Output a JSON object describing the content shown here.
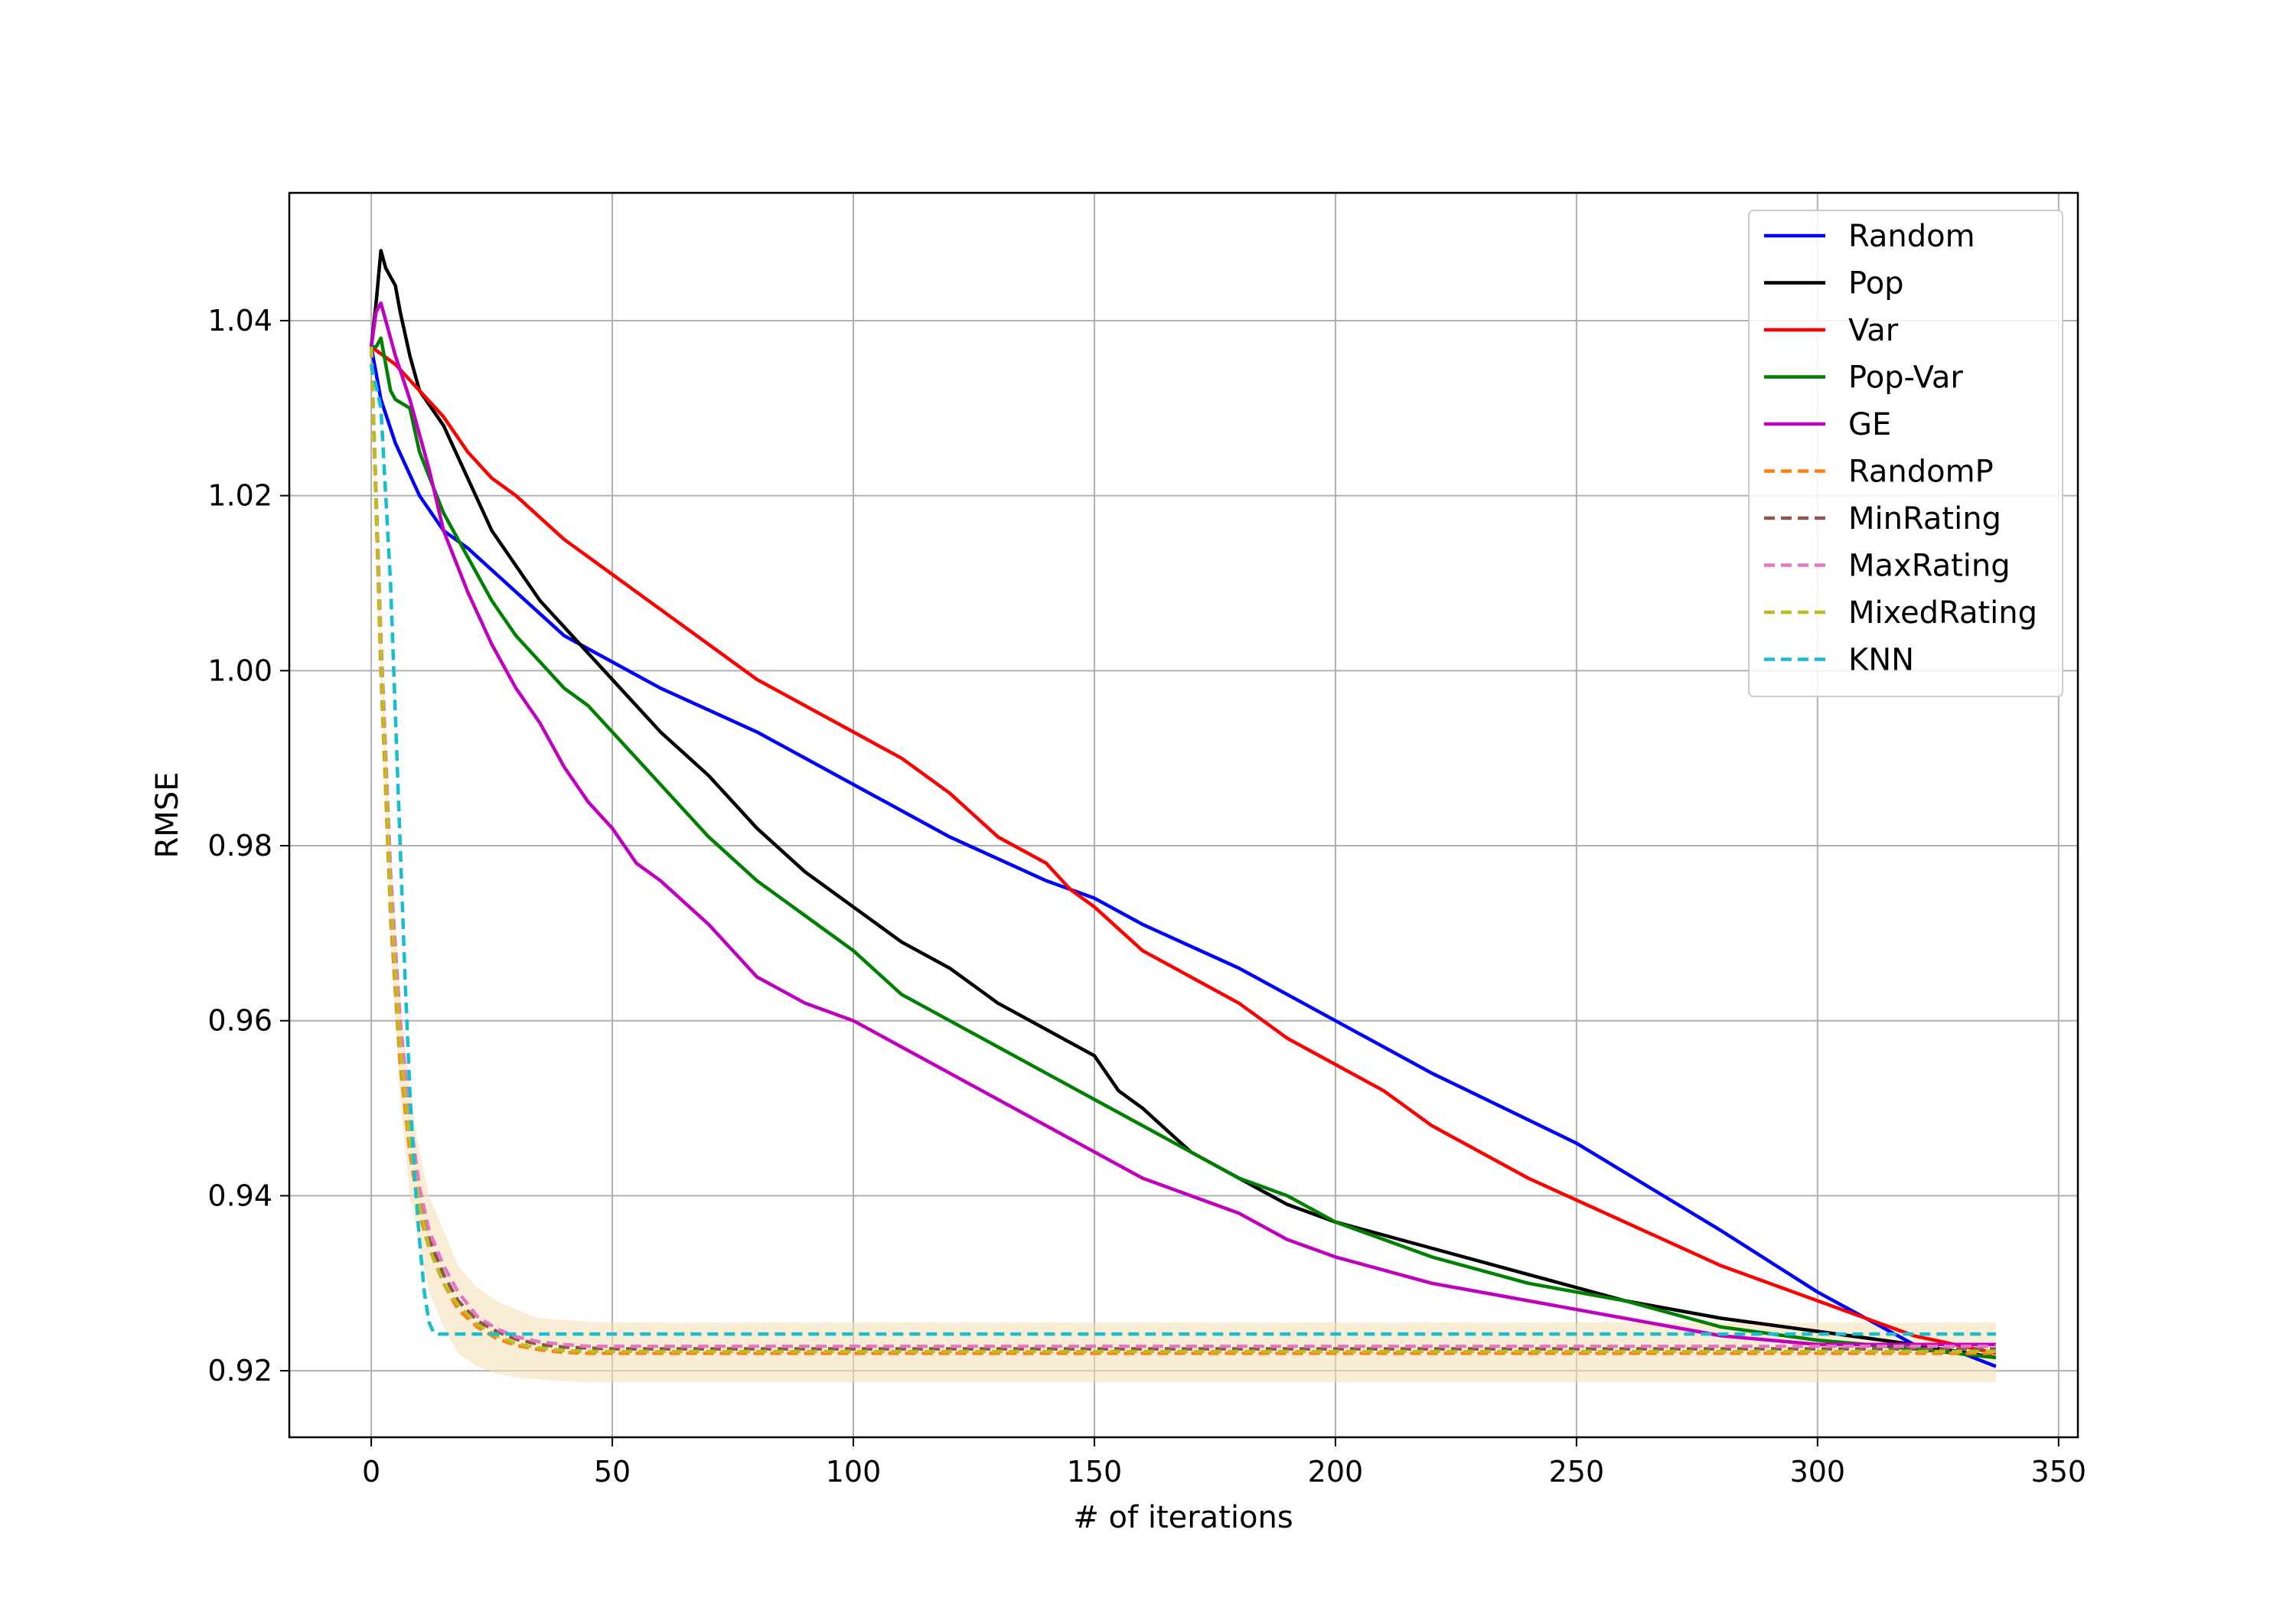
{
  "chart_data": {
    "type": "line",
    "title": "",
    "xlabel": "# of iterations",
    "ylabel": "RMSE",
    "xlim": [
      -17,
      354
    ],
    "ylim": [
      0.9124,
      1.0546
    ],
    "xticks": [
      0,
      50,
      100,
      150,
      200,
      250,
      300,
      350
    ],
    "xtick_labels": [
      "0",
      "50",
      "100",
      "150",
      "200",
      "250",
      "300",
      "350"
    ],
    "yticks": [
      0.92,
      0.94,
      0.96,
      0.98,
      1.0,
      1.02,
      1.04
    ],
    "ytick_labels": [
      "0.92",
      "0.94",
      "0.96",
      "0.98",
      "1.00",
      "1.02",
      "1.04"
    ],
    "grid": true,
    "legend_position": "top-right",
    "series": [
      {
        "name": "Random",
        "color": "#0000ff",
        "style": "solid",
        "x": [
          0,
          2,
          5,
          10,
          15,
          20,
          30,
          40,
          50,
          60,
          80,
          100,
          120,
          140,
          150,
          160,
          180,
          200,
          220,
          250,
          280,
          300,
          320,
          330,
          337
        ],
        "y": [
          1.037,
          1.031,
          1.026,
          1.02,
          1.016,
          1.014,
          1.009,
          1.004,
          1.001,
          0.998,
          0.993,
          0.987,
          0.981,
          0.976,
          0.974,
          0.971,
          0.966,
          0.96,
          0.954,
          0.946,
          0.936,
          0.929,
          0.923,
          0.922,
          0.9205
        ]
      },
      {
        "name": "Pop",
        "color": "#000000",
        "style": "solid",
        "x": [
          0,
          1,
          2,
          3,
          4,
          5,
          6,
          8,
          10,
          15,
          20,
          25,
          30,
          35,
          40,
          45,
          50,
          60,
          70,
          80,
          90,
          100,
          110,
          120,
          130,
          140,
          150,
          155,
          160,
          170,
          180,
          190,
          200,
          220,
          240,
          260,
          280,
          300,
          320,
          337
        ],
        "y": [
          1.037,
          1.042,
          1.048,
          1.046,
          1.045,
          1.044,
          1.041,
          1.036,
          1.032,
          1.028,
          1.022,
          1.016,
          1.012,
          1.008,
          1.005,
          1.002,
          0.999,
          0.993,
          0.988,
          0.982,
          0.977,
          0.973,
          0.969,
          0.966,
          0.962,
          0.959,
          0.956,
          0.952,
          0.95,
          0.945,
          0.942,
          0.939,
          0.937,
          0.934,
          0.931,
          0.928,
          0.926,
          0.9245,
          0.923,
          0.9215
        ]
      },
      {
        "name": "Var",
        "color": "#ff0000",
        "style": "solid",
        "x": [
          0,
          5,
          10,
          15,
          20,
          25,
          30,
          40,
          50,
          60,
          70,
          80,
          90,
          100,
          110,
          120,
          130,
          140,
          145,
          150,
          160,
          170,
          180,
          190,
          200,
          210,
          220,
          240,
          260,
          280,
          300,
          320,
          337
        ],
        "y": [
          1.037,
          1.035,
          1.032,
          1.029,
          1.025,
          1.022,
          1.02,
          1.015,
          1.011,
          1.007,
          1.003,
          0.999,
          0.996,
          0.993,
          0.99,
          0.986,
          0.981,
          0.978,
          0.975,
          0.973,
          0.968,
          0.965,
          0.962,
          0.958,
          0.955,
          0.952,
          0.948,
          0.942,
          0.937,
          0.932,
          0.928,
          0.924,
          0.922
        ]
      },
      {
        "name": "Pop-Var",
        "color": "#008000",
        "style": "solid",
        "x": [
          0,
          1,
          2,
          3,
          4,
          5,
          8,
          10,
          15,
          20,
          25,
          30,
          35,
          40,
          45,
          50,
          55,
          60,
          70,
          80,
          90,
          100,
          110,
          120,
          130,
          140,
          150,
          160,
          170,
          180,
          190,
          200,
          220,
          240,
          260,
          280,
          300,
          320,
          337
        ],
        "y": [
          1.037,
          1.037,
          1.038,
          1.035,
          1.032,
          1.031,
          1.03,
          1.025,
          1.018,
          1.013,
          1.008,
          1.004,
          1.001,
          0.998,
          0.996,
          0.993,
          0.99,
          0.987,
          0.981,
          0.976,
          0.972,
          0.968,
          0.963,
          0.96,
          0.957,
          0.954,
          0.951,
          0.948,
          0.945,
          0.942,
          0.94,
          0.937,
          0.933,
          0.93,
          0.928,
          0.925,
          0.9235,
          0.9225,
          0.9215
        ]
      },
      {
        "name": "GE",
        "color": "#bf00bf",
        "style": "solid",
        "x": [
          0,
          1,
          2,
          3,
          5,
          8,
          10,
          12,
          15,
          20,
          25,
          30,
          35,
          40,
          45,
          50,
          55,
          60,
          70,
          80,
          90,
          100,
          110,
          120,
          130,
          140,
          150,
          160,
          170,
          180,
          190,
          200,
          220,
          240,
          260,
          280,
          300,
          320,
          337
        ],
        "y": [
          1.037,
          1.041,
          1.042,
          1.04,
          1.036,
          1.031,
          1.027,
          1.023,
          1.016,
          1.009,
          1.003,
          0.998,
          0.994,
          0.989,
          0.985,
          0.982,
          0.978,
          0.976,
          0.971,
          0.965,
          0.962,
          0.96,
          0.957,
          0.954,
          0.951,
          0.948,
          0.945,
          0.942,
          0.94,
          0.938,
          0.935,
          0.933,
          0.93,
          0.928,
          0.926,
          0.924,
          0.923,
          0.923,
          0.923
        ]
      },
      {
        "name": "RandomP",
        "color": "#ff7f0e",
        "style": "dashed",
        "x": [
          0,
          2,
          4,
          6,
          8,
          10,
          12,
          15,
          18,
          22,
          26,
          30,
          35,
          40,
          45,
          50,
          60,
          80,
          120,
          200,
          300,
          337
        ],
        "y": [
          1.037,
          1.0,
          0.972,
          0.955,
          0.945,
          0.938,
          0.934,
          0.93,
          0.927,
          0.925,
          0.9237,
          0.9229,
          0.9224,
          0.9221,
          0.922,
          0.922,
          0.922,
          0.922,
          0.922,
          0.922,
          0.922,
          0.922
        ]
      },
      {
        "name": "MinRating",
        "color": "#8c564b",
        "style": "dashed",
        "x": [
          0,
          2,
          4,
          6,
          8,
          10,
          12,
          15,
          18,
          22,
          26,
          30,
          35,
          40,
          45,
          50,
          60,
          80,
          120,
          200,
          300,
          337
        ],
        "y": [
          1.037,
          1.003,
          0.975,
          0.958,
          0.947,
          0.94,
          0.935,
          0.931,
          0.928,
          0.9257,
          0.9245,
          0.9236,
          0.923,
          0.9227,
          0.9226,
          0.9225,
          0.9225,
          0.9225,
          0.9225,
          0.9225,
          0.9225,
          0.9225
        ]
      },
      {
        "name": "MaxRating",
        "color": "#e377c2",
        "style": "dashed",
        "x": [
          0,
          2,
          4,
          6,
          8,
          10,
          12,
          15,
          18,
          22,
          26,
          30,
          35,
          40,
          45,
          50,
          60,
          80,
          120,
          200,
          300,
          337
        ],
        "y": [
          1.037,
          1.004,
          0.977,
          0.96,
          0.949,
          0.941,
          0.936,
          0.932,
          0.929,
          0.9262,
          0.9248,
          0.9239,
          0.9233,
          0.923,
          0.9228,
          0.9228,
          0.9228,
          0.9228,
          0.9228,
          0.9228,
          0.9228,
          0.9228
        ]
      },
      {
        "name": "MixedRating",
        "color": "#bcbd22",
        "style": "dashed",
        "x": [
          0,
          2,
          4,
          6,
          8,
          10,
          12,
          15,
          18,
          22,
          26,
          30,
          35,
          40,
          45,
          50,
          60,
          80,
          120,
          200,
          300,
          337
        ],
        "y": [
          1.037,
          1.002,
          0.974,
          0.957,
          0.946,
          0.939,
          0.934,
          0.93,
          0.9275,
          0.9253,
          0.924,
          0.9231,
          0.9226,
          0.9223,
          0.9222,
          0.9222,
          0.9222,
          0.9222,
          0.9222,
          0.9222,
          0.9222,
          0.9222
        ]
      },
      {
        "name": "KNN",
        "color": "#17becf",
        "style": "dashed",
        "x": [
          0,
          2,
          4,
          5,
          6,
          7,
          8,
          9,
          10,
          11,
          12,
          13,
          14,
          20,
          50,
          100,
          200,
          300,
          337
        ],
        "y": [
          1.035,
          1.03,
          1.01,
          0.995,
          0.98,
          0.965,
          0.952,
          0.942,
          0.935,
          0.929,
          0.9255,
          0.9243,
          0.9242,
          0.9242,
          0.9242,
          0.9242,
          0.9242,
          0.9242,
          0.9242
        ]
      }
    ],
    "confidence_band": {
      "color": "#f5deb3",
      "x": [
        0,
        2,
        4,
        6,
        8,
        10,
        12,
        15,
        18,
        22,
        26,
        30,
        35,
        40,
        45,
        50,
        60,
        80,
        120,
        200,
        300,
        337
      ],
      "upper": [
        1.037,
        1.006,
        0.98,
        0.963,
        0.952,
        0.945,
        0.94,
        0.936,
        0.932,
        0.9295,
        0.928,
        0.927,
        0.926,
        0.9258,
        0.9256,
        0.9255,
        0.9255,
        0.9255,
        0.9255,
        0.9255,
        0.9255,
        0.9255
      ],
      "lower": [
        1.037,
        0.998,
        0.969,
        0.951,
        0.94,
        0.934,
        0.929,
        0.925,
        0.922,
        0.9205,
        0.9197,
        0.9192,
        0.919,
        0.9188,
        0.9187,
        0.9187,
        0.9187,
        0.9187,
        0.9187,
        0.9187,
        0.9187,
        0.9187
      ]
    }
  }
}
